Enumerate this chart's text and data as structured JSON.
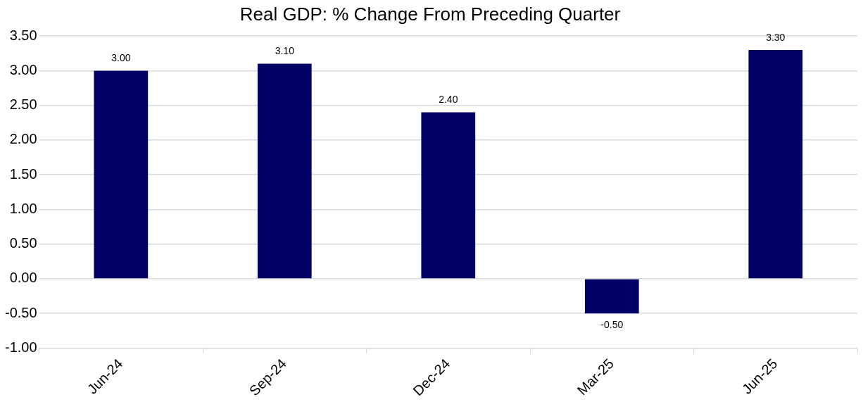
{
  "chart_data": {
    "type": "bar",
    "title": "Real GDP: % Change From Preceding Quarter",
    "categories": [
      "Jun-24",
      "Sep-24",
      "Dec-24",
      "Mar-25",
      "Jun-25"
    ],
    "values": [
      3.0,
      3.1,
      2.4,
      -0.5,
      3.3
    ],
    "value_labels": [
      "3.00",
      "3.10",
      "2.40",
      "-0.50",
      "3.30"
    ],
    "color": "#000066",
    "ylim": [
      -1,
      3.5
    ],
    "yticks": [
      {
        "value": -1,
        "label": "-1.00"
      },
      {
        "value": -0.5,
        "label": "-0.50"
      },
      {
        "value": 0,
        "label": "0.00"
      },
      {
        "value": 0.5,
        "label": "0.50"
      },
      {
        "value": 1,
        "label": "1.00"
      },
      {
        "value": 1.5,
        "label": "1.50"
      },
      {
        "value": 2,
        "label": "2.00"
      },
      {
        "value": 2.5,
        "label": "2.50"
      },
      {
        "value": 3,
        "label": "3.00"
      },
      {
        "value": 3.5,
        "label": "3.50"
      }
    ],
    "grid": "y",
    "legend": false
  }
}
